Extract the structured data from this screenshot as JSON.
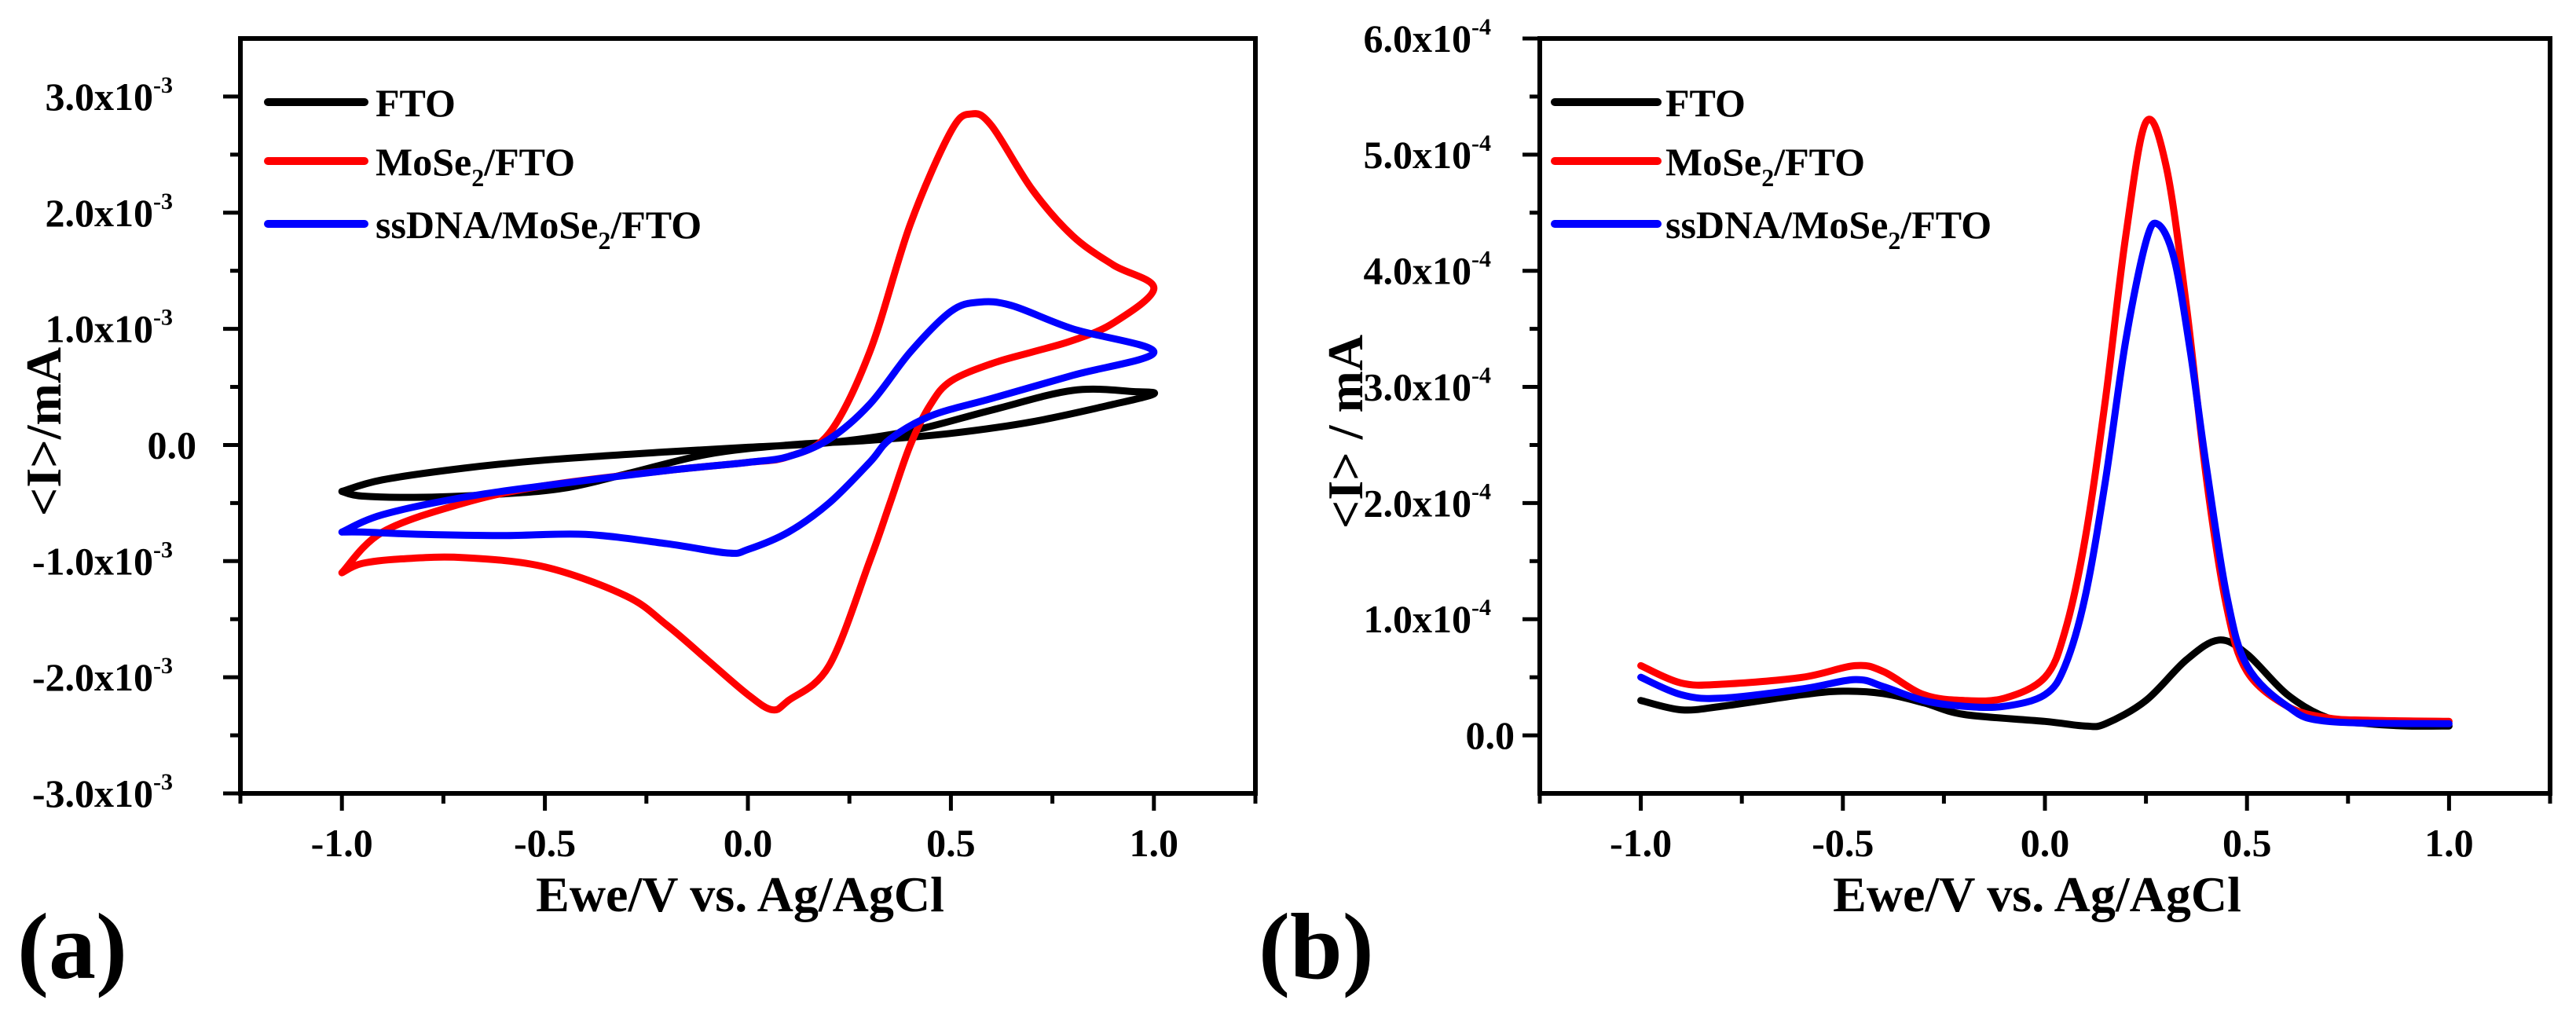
{
  "colors": {
    "FTO": "#000000",
    "MoSe2/FTO": "#ff0000",
    "ssDNA/MoSe2/FTO": "#0000ff",
    "axis": "#000000"
  },
  "chart_data": [
    {
      "type": "line",
      "panel_label": "(a)",
      "xlabel": "Ewe/V vs. Ag/AgCl",
      "ylabel": "<I>/mA",
      "xlim": [
        -1.25,
        1.25
      ],
      "ylim": [
        -0.003,
        0.0035
      ],
      "xticks": [
        {
          "v": -1.0,
          "label": "-1.0"
        },
        {
          "v": -0.5,
          "label": "-0.5"
        },
        {
          "v": 0.0,
          "label": "0.0"
        },
        {
          "v": 0.5,
          "label": "0.5"
        },
        {
          "v": 1.0,
          "label": "1.0"
        }
      ],
      "yticks": [
        {
          "v": 0.003,
          "base": "3.0x10",
          "exp": "-3"
        },
        {
          "v": 0.002,
          "base": "2.0x10",
          "exp": "-3"
        },
        {
          "v": 0.001,
          "base": "1.0x10",
          "exp": "-3"
        },
        {
          "v": 0.0,
          "base": "0.0",
          "exp": ""
        },
        {
          "v": -0.001,
          "base": "-1.0x10",
          "exp": "-3"
        },
        {
          "v": -0.002,
          "base": "-2.0x10",
          "exp": "-3"
        },
        {
          "v": -0.003,
          "base": "-3.0x10",
          "exp": "-3"
        }
      ],
      "y_scale": 0.001,
      "legend_position": "top-left",
      "series": [
        {
          "name": "FTO",
          "label_main": "FTO",
          "label_sub": "",
          "label_tail": "",
          "color_key": "FTO",
          "x": [
            -1.0,
            -0.9,
            -0.7,
            -0.5,
            -0.2,
            0.0,
            0.2,
            0.4,
            0.6,
            0.8,
            0.95,
            1.0,
            0.9,
            0.7,
            0.5,
            0.3,
            0.1,
            -0.1,
            -0.3,
            -0.45,
            -0.6,
            -0.8,
            -0.95,
            -1.0
          ],
          "y": [
            -0.4,
            -0.3,
            -0.2,
            -0.13,
            -0.06,
            -0.02,
            0.02,
            0.12,
            0.3,
            0.47,
            0.46,
            0.44,
            0.35,
            0.2,
            0.1,
            0.04,
            0.0,
            -0.08,
            -0.25,
            -0.37,
            -0.42,
            -0.45,
            -0.44,
            -0.4
          ]
        },
        {
          "name": "MoSe2/FTO",
          "label_main": "MoSe",
          "label_sub": "2",
          "label_tail": "/FTO",
          "color_key": "MoSe2/FTO",
          "x": [
            -1.0,
            -0.9,
            -0.7,
            -0.5,
            -0.2,
            0.0,
            0.1,
            0.2,
            0.3,
            0.4,
            0.5,
            0.55,
            0.6,
            0.7,
            0.8,
            0.9,
            1.0,
            0.9,
            0.8,
            0.7,
            0.6,
            0.5,
            0.45,
            0.4,
            0.35,
            0.3,
            0.2,
            0.1,
            0.06,
            0.0,
            -0.1,
            -0.2,
            -0.3,
            -0.5,
            -0.7,
            -0.85,
            -0.95,
            -1.0
          ],
          "y": [
            -1.1,
            -0.75,
            -0.5,
            -0.35,
            -0.22,
            -0.15,
            -0.1,
            0.1,
            0.8,
            1.9,
            2.7,
            2.85,
            2.75,
            2.2,
            1.8,
            1.55,
            1.35,
            1.05,
            0.9,
            0.8,
            0.7,
            0.55,
            0.35,
            0.0,
            -0.5,
            -1.0,
            -1.9,
            -2.2,
            -2.28,
            -2.15,
            -1.85,
            -1.55,
            -1.3,
            -1.05,
            -0.97,
            -0.98,
            -1.02,
            -1.1
          ]
        },
        {
          "name": "ssDNA/MoSe2/FTO",
          "label_main": "ssDNA/MoSe",
          "label_sub": "2",
          "label_tail": "/FTO",
          "color_key": "ssDNA/MoSe2/FTO",
          "x": [
            -1.0,
            -0.9,
            -0.7,
            -0.5,
            -0.2,
            0.0,
            0.1,
            0.2,
            0.3,
            0.4,
            0.5,
            0.57,
            0.65,
            0.8,
            1.0,
            0.8,
            0.6,
            0.45,
            0.35,
            0.3,
            0.2,
            0.1,
            0.0,
            -0.05,
            -0.2,
            -0.4,
            -0.6,
            -0.8,
            -0.95,
            -1.0
          ],
          "y": [
            -0.75,
            -0.6,
            -0.45,
            -0.35,
            -0.22,
            -0.15,
            -0.1,
            0.05,
            0.35,
            0.8,
            1.15,
            1.23,
            1.2,
            1.0,
            0.8,
            0.6,
            0.4,
            0.25,
            0.05,
            -0.15,
            -0.5,
            -0.75,
            -0.9,
            -0.93,
            -0.85,
            -0.77,
            -0.78,
            -0.77,
            -0.75,
            -0.75
          ]
        }
      ]
    },
    {
      "type": "line",
      "panel_label": "(b)",
      "xlabel": "Ewe/V vs. Ag/AgCl",
      "ylabel": "<I> / mA",
      "xlim": [
        -1.25,
        1.25
      ],
      "ylim": [
        -5e-05,
        0.0006
      ],
      "xticks": [
        {
          "v": -1.0,
          "label": "-1.0"
        },
        {
          "v": -0.5,
          "label": "-0.5"
        },
        {
          "v": 0.0,
          "label": "0.0"
        },
        {
          "v": 0.5,
          "label": "0.5"
        },
        {
          "v": 1.0,
          "label": "1.0"
        }
      ],
      "yticks": [
        {
          "v": 0.0006,
          "base": "6.0x10",
          "exp": "-4"
        },
        {
          "v": 0.0005,
          "base": "5.0x10",
          "exp": "-4"
        },
        {
          "v": 0.0004,
          "base": "4.0x10",
          "exp": "-4"
        },
        {
          "v": 0.0003,
          "base": "3.0x10",
          "exp": "-4"
        },
        {
          "v": 0.0002,
          "base": "2.0x10",
          "exp": "-4"
        },
        {
          "v": 0.0001,
          "base": "1.0x10",
          "exp": "-4"
        },
        {
          "v": 0.0,
          "base": "0.0",
          "exp": ""
        }
      ],
      "y_scale": 0.0001,
      "legend_position": "top-left",
      "series": [
        {
          "name": "FTO",
          "label_main": "FTO",
          "label_sub": "",
          "label_tail": "",
          "color_key": "FTO",
          "x": [
            -1.0,
            -0.9,
            -0.8,
            -0.6,
            -0.5,
            -0.4,
            -0.3,
            -0.2,
            0.0,
            0.1,
            0.15,
            0.25,
            0.35,
            0.43,
            0.5,
            0.6,
            0.7,
            0.8,
            0.9,
            1.0
          ],
          "y": [
            0.3,
            0.22,
            0.25,
            0.35,
            0.38,
            0.36,
            0.28,
            0.18,
            0.12,
            0.08,
            0.1,
            0.3,
            0.65,
            0.82,
            0.7,
            0.35,
            0.15,
            0.1,
            0.08,
            0.08
          ]
        },
        {
          "name": "MoSe2/FTO",
          "label_main": "MoSe",
          "label_sub": "2",
          "label_tail": "/FTO",
          "color_key": "MoSe2/FTO",
          "x": [
            -1.0,
            -0.9,
            -0.8,
            -0.6,
            -0.47,
            -0.4,
            -0.3,
            -0.2,
            -0.1,
            0.0,
            0.05,
            0.1,
            0.15,
            0.2,
            0.25,
            0.3,
            0.35,
            0.4,
            0.45,
            0.5,
            0.6,
            0.7,
            0.8,
            1.0
          ],
          "y": [
            0.6,
            0.45,
            0.44,
            0.5,
            0.6,
            0.55,
            0.35,
            0.3,
            0.32,
            0.5,
            0.9,
            1.7,
            2.9,
            4.3,
            5.28,
            4.9,
            3.7,
            2.2,
            1.1,
            0.55,
            0.25,
            0.15,
            0.13,
            0.12
          ]
        },
        {
          "name": "ssDNA/MoSe2/FTO",
          "label_main": "ssDNA/MoSe",
          "label_sub": "2",
          "label_tail": "/FTO",
          "color_key": "ssDNA/MoSe2/FTO",
          "x": [
            -1.0,
            -0.9,
            -0.8,
            -0.6,
            -0.47,
            -0.4,
            -0.3,
            -0.2,
            -0.1,
            0.0,
            0.05,
            0.1,
            0.15,
            0.2,
            0.25,
            0.28,
            0.32,
            0.36,
            0.4,
            0.45,
            0.5,
            0.6,
            0.7,
            1.0
          ],
          "y": [
            0.5,
            0.35,
            0.32,
            0.4,
            0.48,
            0.42,
            0.3,
            0.25,
            0.25,
            0.35,
            0.6,
            1.2,
            2.2,
            3.4,
            4.25,
            4.4,
            4.1,
            3.3,
            2.3,
            1.2,
            0.6,
            0.25,
            0.12,
            0.1
          ]
        }
      ]
    }
  ]
}
